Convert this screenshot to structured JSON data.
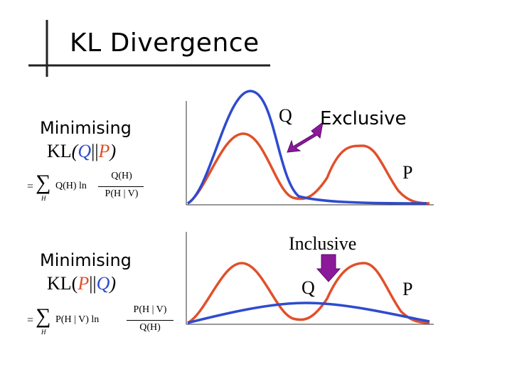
{
  "title": "KL Divergence",
  "top": {
    "label": "Minimising",
    "kl_prefix": "KL",
    "kl_open": "(",
    "kl_first": "Q",
    "kl_sep": "||",
    "kl_second": "P",
    "kl_close": ")",
    "formula": {
      "equals": "=",
      "sigma": "∑",
      "sub": "H",
      "body": "Q(H) ln",
      "numerator": "Q(H)",
      "denominator": "P(H | V)"
    },
    "annotation_q": "Q",
    "annotation_word": "Exclusive",
    "annotation_p": "P"
  },
  "bottom": {
    "label": "Minimising",
    "kl_prefix": "KL(",
    "kl_first": "P",
    "kl_sep": "||",
    "kl_second": "Q",
    "kl_close": ")",
    "formula": {
      "equals": "=",
      "sigma": "∑",
      "sub": "H",
      "body": "P(H | V) ln",
      "numerator": "P(H | V)",
      "denominator": "Q(H)"
    },
    "annotation_word": "Inclusive",
    "annotation_q": "Q",
    "annotation_p": "P"
  },
  "colors": {
    "blue": "#2e4bd0",
    "orange": "#e0502a",
    "arrow": "#8a1a9a",
    "axis": "#333333",
    "rule": "#222222"
  }
}
